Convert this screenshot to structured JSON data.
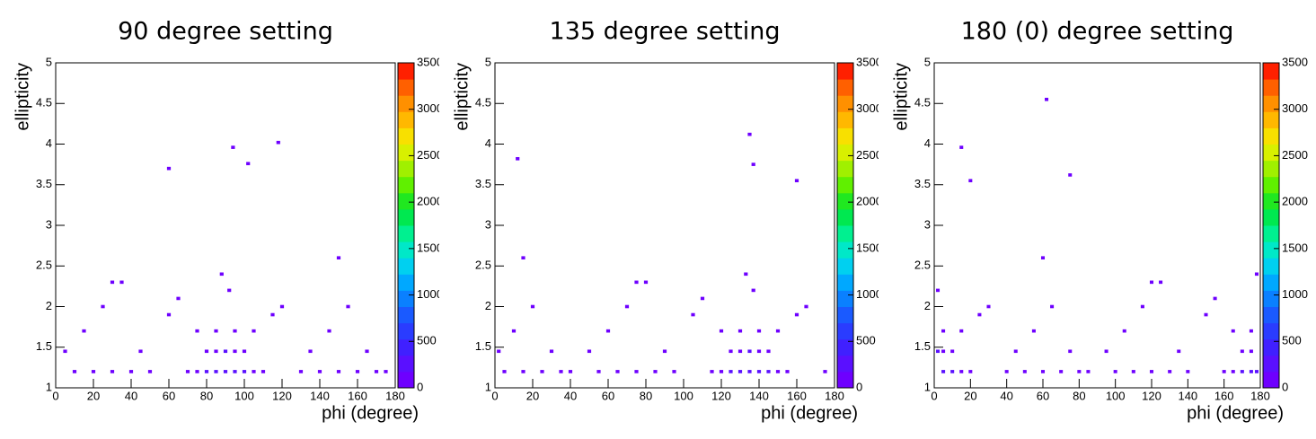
{
  "chart_data": [
    {
      "type": "heatmap",
      "title": "90 degree setting",
      "xlabel": "phi (degree)",
      "ylabel": "ellipticity",
      "xlim": [
        0,
        180
      ],
      "ylim": [
        1,
        5
      ],
      "zlim": [
        0,
        3500
      ],
      "xticks": [
        0,
        20,
        40,
        60,
        80,
        100,
        120,
        140,
        160,
        180
      ],
      "yticks": [
        1,
        1.5,
        2,
        2.5,
        3,
        3.5,
        4,
        4.5,
        5
      ],
      "zticks": [
        0,
        500,
        1000,
        1500,
        2000,
        2500,
        3000,
        3500
      ],
      "colorscale": [
        "#6e00ff",
        "#5a10ff",
        "#4020ff",
        "#2a3cff",
        "#1a5aff",
        "#0a80ff",
        "#00a8ff",
        "#00d0f0",
        "#00e8c8",
        "#00f090",
        "#00e850",
        "#20e820",
        "#60f000",
        "#a0f000",
        "#d8f000",
        "#f8e000",
        "#ffb800",
        "#ff9000",
        "#ff6000",
        "#ff2000"
      ],
      "x": [
        70,
        75,
        80,
        85,
        90,
        95,
        100,
        105,
        110,
        80,
        85,
        90,
        95,
        100,
        75,
        85,
        95,
        105,
        60,
        65,
        115,
        120,
        10,
        20,
        30,
        40,
        50,
        130,
        140,
        150,
        160,
        170,
        5,
        15,
        25,
        35,
        45,
        135,
        145,
        155,
        165,
        175,
        92,
        88,
        60,
        118,
        94,
        102,
        30,
        150
      ],
      "y": [
        1.2,
        1.2,
        1.2,
        1.2,
        1.2,
        1.2,
        1.2,
        1.2,
        1.2,
        1.45,
        1.45,
        1.45,
        1.45,
        1.45,
        1.7,
        1.7,
        1.7,
        1.7,
        1.9,
        2.1,
        1.9,
        2.0,
        1.2,
        1.2,
        1.2,
        1.2,
        1.2,
        1.2,
        1.2,
        1.2,
        1.2,
        1.2,
        1.45,
        1.7,
        2.0,
        2.3,
        1.45,
        1.45,
        1.7,
        2.0,
        1.45,
        1.2,
        2.2,
        2.4,
        3.7,
        4.02,
        3.96,
        3.76,
        2.3,
        2.6
      ],
      "values": [
        120,
        150,
        180,
        200,
        220,
        200,
        180,
        150,
        120,
        130,
        160,
        190,
        160,
        130,
        110,
        140,
        140,
        110,
        90,
        90,
        80,
        80,
        60,
        60,
        60,
        60,
        60,
        60,
        60,
        60,
        60,
        60,
        50,
        50,
        50,
        50,
        50,
        50,
        50,
        50,
        50,
        50,
        40,
        40,
        10,
        10,
        10,
        10,
        20,
        20
      ]
    },
    {
      "type": "heatmap",
      "title": "135 degree setting",
      "xlabel": "phi (degree)",
      "ylabel": "ellipticity",
      "xlim": [
        0,
        180
      ],
      "ylim": [
        1,
        5
      ],
      "zlim": [
        0,
        3500
      ],
      "xticks": [
        0,
        20,
        40,
        60,
        80,
        100,
        120,
        140,
        160,
        180
      ],
      "yticks": [
        1,
        1.5,
        2,
        2.5,
        3,
        3.5,
        4,
        4.5,
        5
      ],
      "zticks": [
        0,
        500,
        1000,
        1500,
        2000,
        2500,
        3000,
        3500
      ],
      "colorscale": [
        "#6e00ff",
        "#5a10ff",
        "#4020ff",
        "#2a3cff",
        "#1a5aff",
        "#0a80ff",
        "#00a8ff",
        "#00d0f0",
        "#00e8c8",
        "#00f090",
        "#00e850",
        "#20e820",
        "#60f000",
        "#a0f000",
        "#d8f000",
        "#f8e000",
        "#ffb800",
        "#ff9000",
        "#ff6000",
        "#ff2000"
      ],
      "x": [
        115,
        120,
        125,
        130,
        135,
        140,
        145,
        150,
        155,
        125,
        130,
        135,
        140,
        145,
        120,
        130,
        140,
        150,
        105,
        110,
        160,
        165,
        55,
        65,
        75,
        85,
        95,
        175,
        5,
        15,
        25,
        35,
        50,
        60,
        70,
        80,
        90,
        2,
        10,
        20,
        30,
        40,
        137,
        133,
        12,
        135,
        137,
        160,
        75,
        15
      ],
      "y": [
        1.2,
        1.2,
        1.2,
        1.2,
        1.2,
        1.2,
        1.2,
        1.2,
        1.2,
        1.45,
        1.45,
        1.45,
        1.45,
        1.45,
        1.7,
        1.7,
        1.7,
        1.7,
        1.9,
        2.1,
        1.9,
        2.0,
        1.2,
        1.2,
        1.2,
        1.2,
        1.2,
        1.2,
        1.2,
        1.2,
        1.2,
        1.2,
        1.45,
        1.7,
        2.0,
        2.3,
        1.45,
        1.45,
        1.7,
        2.0,
        1.45,
        1.2,
        2.2,
        2.4,
        3.82,
        4.12,
        3.75,
        3.55,
        2.3,
        2.6
      ],
      "values": [
        120,
        150,
        180,
        200,
        220,
        200,
        180,
        150,
        120,
        130,
        160,
        190,
        160,
        130,
        110,
        140,
        140,
        110,
        90,
        90,
        80,
        80,
        60,
        60,
        60,
        60,
        60,
        60,
        60,
        60,
        60,
        60,
        50,
        50,
        50,
        50,
        50,
        50,
        50,
        50,
        50,
        50,
        40,
        40,
        10,
        10,
        10,
        10,
        20,
        20
      ]
    },
    {
      "type": "heatmap",
      "title": "180 (0) degree setting",
      "xlabel": "phi (degree)",
      "ylabel": "ellipticity",
      "xlim": [
        0,
        180
      ],
      "ylim": [
        1,
        5
      ],
      "zlim": [
        0,
        3500
      ],
      "xticks": [
        0,
        20,
        40,
        60,
        80,
        100,
        120,
        140,
        160,
        180
      ],
      "yticks": [
        1,
        1.5,
        2,
        2.5,
        3,
        3.5,
        4,
        4.5,
        5
      ],
      "zticks": [
        0,
        500,
        1000,
        1500,
        2000,
        2500,
        3000,
        3500
      ],
      "colorscale": [
        "#6e00ff",
        "#5a10ff",
        "#4020ff",
        "#2a3cff",
        "#1a5aff",
        "#0a80ff",
        "#00a8ff",
        "#00d0f0",
        "#00e8c8",
        "#00f090",
        "#00e850",
        "#20e820",
        "#60f000",
        "#a0f000",
        "#d8f000",
        "#f8e000",
        "#ffb800",
        "#ff9000",
        "#ff6000",
        "#ff2000"
      ],
      "x": [
        160,
        165,
        170,
        175,
        178,
        5,
        10,
        15,
        20,
        170,
        175,
        2,
        5,
        10,
        165,
        175,
        5,
        15,
        150,
        155,
        25,
        30,
        100,
        110,
        120,
        130,
        140,
        40,
        50,
        60,
        70,
        80,
        95,
        105,
        115,
        125,
        135,
        45,
        55,
        65,
        75,
        85,
        2,
        178,
        62,
        15,
        75,
        20,
        120,
        60
      ],
      "y": [
        1.2,
        1.2,
        1.2,
        1.2,
        1.2,
        1.2,
        1.2,
        1.2,
        1.2,
        1.45,
        1.45,
        1.45,
        1.45,
        1.45,
        1.7,
        1.7,
        1.7,
        1.7,
        1.9,
        2.1,
        1.9,
        2.0,
        1.2,
        1.2,
        1.2,
        1.2,
        1.2,
        1.2,
        1.2,
        1.2,
        1.2,
        1.2,
        1.45,
        1.7,
        2.0,
        2.3,
        1.45,
        1.45,
        1.7,
        2.0,
        1.45,
        1.2,
        2.2,
        2.4,
        4.55,
        3.96,
        3.62,
        3.55,
        2.3,
        2.6
      ],
      "values": [
        120,
        150,
        180,
        200,
        220,
        200,
        180,
        150,
        120,
        130,
        160,
        190,
        160,
        130,
        110,
        140,
        140,
        110,
        90,
        90,
        80,
        80,
        60,
        60,
        60,
        60,
        60,
        60,
        60,
        60,
        60,
        60,
        50,
        50,
        50,
        50,
        50,
        50,
        50,
        50,
        50,
        50,
        40,
        40,
        10,
        10,
        10,
        10,
        20,
        20
      ]
    }
  ]
}
